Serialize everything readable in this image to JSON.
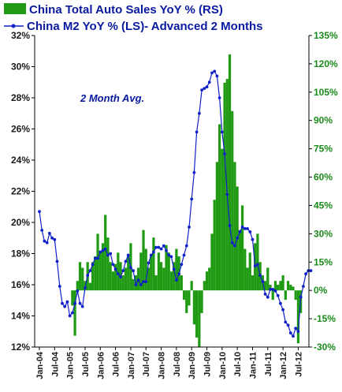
{
  "chart_data": {
    "type": "bar+line",
    "title": "",
    "annotation": "2 Month Avg.",
    "legend": [
      {
        "label": "China Total Auto Sales YoY % (RS)",
        "color": "#1f9a12",
        "marker": "bar"
      },
      {
        "label": "China M2 YoY % (LS)- Advanced 2 Months",
        "color": "#1020c8",
        "marker": "line-dot"
      }
    ],
    "left_axis": {
      "min": 12,
      "max": 32,
      "ticks": [
        "12%",
        "14%",
        "16%",
        "18%",
        "20%",
        "22%",
        "24%",
        "26%",
        "28%",
        "30%",
        "32%"
      ]
    },
    "right_axis": {
      "min": -30,
      "max": 135,
      "ticks": [
        "-30%",
        "-15%",
        "0%",
        "15%",
        "30%",
        "45%",
        "60%",
        "75%",
        "90%",
        "105%",
        "120%",
        "135%"
      ]
    },
    "x_ticks": [
      "Jan-04",
      "Jul-04",
      "Jan-05",
      "Jul-05",
      "Jan-06",
      "Jul-06",
      "Jan-07",
      "Jul-07",
      "Jan-08",
      "Jul-08",
      "Jan-09",
      "Jul-09",
      "Jan-10",
      "Jul-10",
      "Jan-11",
      "Jul-11",
      "Jan-12",
      "Jul-12"
    ],
    "x_start": "Jan-04",
    "series": [
      {
        "name": "China Total Auto Sales YoY % (RS)",
        "axis": "right",
        "kind": "bar",
        "start": "Feb-05",
        "values": [
          -8,
          -24,
          5,
          15,
          12,
          5,
          15,
          4,
          15,
          18,
          30,
          20,
          25,
          40,
          28,
          15,
          10,
          14,
          20,
          15,
          8,
          12,
          18,
          25,
          6,
          8,
          12,
          20,
          32,
          22,
          12,
          18,
          28,
          8,
          20,
          15,
          12,
          24,
          20,
          10,
          15,
          22,
          18,
          8,
          -5,
          -12,
          -8,
          5,
          -18,
          -25,
          -30,
          -12,
          5,
          10,
          12,
          30,
          48,
          68,
          88,
          75,
          110,
          112,
          125,
          95,
          68,
          55,
          32,
          45,
          22,
          12,
          20,
          8,
          25,
          30,
          15,
          8,
          5,
          12,
          3,
          -5,
          5,
          3,
          5,
          8,
          -5,
          5,
          3,
          2,
          -5,
          -28,
          -12
        ]
      },
      {
        "name": "China M2 YoY % (LS)- Advanced 2 Months",
        "axis": "left",
        "kind": "line",
        "start": "Jan-04",
        "values": [
          20.7,
          19.5,
          18.8,
          18.7,
          19.3,
          19.0,
          18.9,
          17.5,
          15.9,
          14.8,
          14.6,
          14.9,
          14.0,
          14.2,
          14.8,
          15.6,
          14.8,
          14.6,
          15.8,
          16.6,
          16.9,
          17.3,
          17.7,
          17.7,
          18.1,
          18.2,
          18.3,
          17.9,
          18.0,
          17.3,
          17.0,
          16.7,
          16.5,
          16.9,
          17.5,
          17.9,
          17.1,
          16.9,
          16.0,
          16.3,
          16.0,
          16.2,
          16.2,
          17.4,
          17.9,
          18.1,
          18.4,
          18.4,
          18.3,
          18.5,
          18.2,
          17.9,
          17.8,
          17.0,
          16.3,
          16.7,
          17.3,
          17.9,
          18.5,
          19.7,
          21.5,
          23.2,
          25.8,
          27.0,
          28.5,
          28.6,
          28.7,
          29.0,
          29.6,
          29.7,
          29.4,
          28.0,
          25.8,
          24.4,
          21.8,
          19.8,
          18.7,
          18.5,
          19.0,
          19.4,
          19.7,
          19.6,
          19.6,
          19.4,
          18.9,
          17.2,
          17.3,
          16.6,
          16.2,
          15.4,
          15.2,
          15.7,
          15.7,
          15.6,
          15.3,
          14.8,
          14.4,
          13.6,
          13.4,
          12.9,
          12.7,
          13.2,
          13.0,
          15.2,
          15.9,
          16.7,
          16.9,
          16.9
        ]
      }
    ]
  }
}
